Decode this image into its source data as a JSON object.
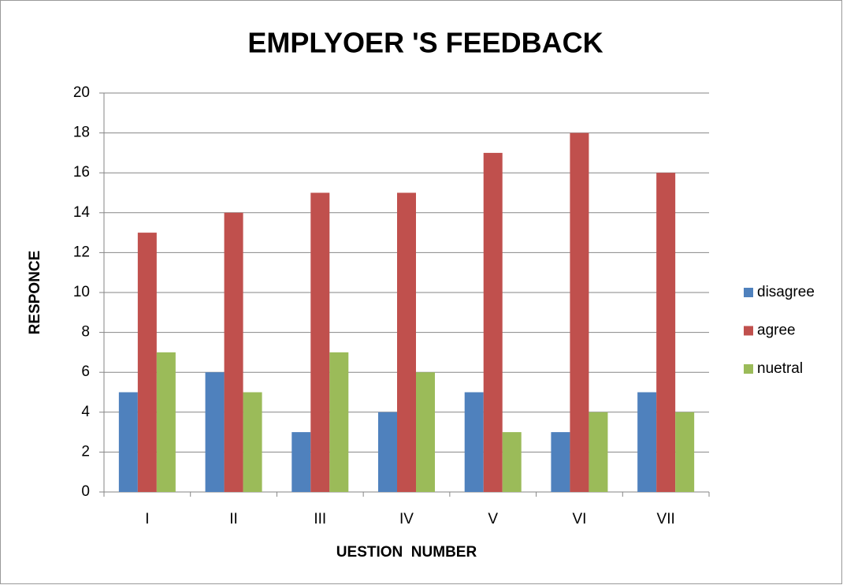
{
  "chart_data": {
    "type": "bar",
    "title": "EMPLYOER 'S FEEDBACK",
    "x_label": "UESTION  NUMBER",
    "y_label": "RESPONCE",
    "categories": [
      "I",
      "II",
      "III",
      "IV",
      "V",
      "VI",
      "VII"
    ],
    "series": [
      {
        "name": "disagree",
        "color": "#4f81bd",
        "values": [
          5,
          6,
          3,
          4,
          5,
          3,
          5
        ]
      },
      {
        "name": "agree",
        "color": "#c0504d",
        "values": [
          13,
          14,
          15,
          15,
          17,
          18,
          16
        ]
      },
      {
        "name": "nuetral",
        "color": "#9bbb59",
        "values": [
          7,
          5,
          7,
          6,
          3,
          4,
          4
        ]
      }
    ],
    "ylim": [
      0,
      20
    ],
    "yticks": [
      0,
      2,
      4,
      6,
      8,
      10,
      12,
      14,
      16,
      18,
      20
    ],
    "grid": true,
    "legend": "right"
  }
}
